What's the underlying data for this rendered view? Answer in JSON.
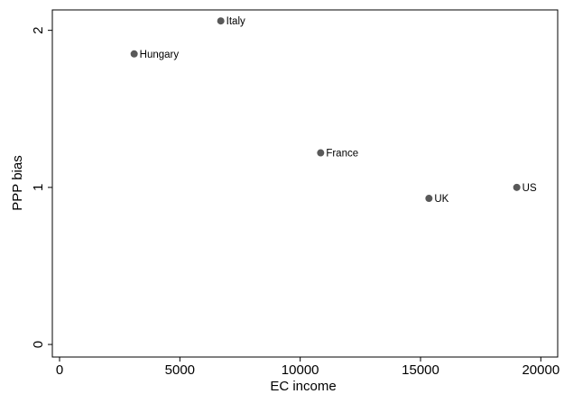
{
  "chart_data": {
    "type": "scatter",
    "title": "",
    "xlabel": "EC income",
    "ylabel": "PPP bias",
    "xlim": [
      -300,
      20700
    ],
    "ylim": [
      -0.08,
      2.13
    ],
    "xticks": [
      0,
      5000,
      10000,
      15000,
      20000
    ],
    "yticks": [
      0,
      1,
      2
    ],
    "grid": false,
    "legend": "none",
    "marker_color": "#595959",
    "points": [
      {
        "label": "Italy",
        "x": 6700,
        "y": 2.06
      },
      {
        "label": "Hungary",
        "x": 3100,
        "y": 1.85
      },
      {
        "label": "France",
        "x": 10850,
        "y": 1.22
      },
      {
        "label": "UK",
        "x": 15350,
        "y": 0.93
      },
      {
        "label": "US",
        "x": 19000,
        "y": 1.0
      }
    ]
  }
}
